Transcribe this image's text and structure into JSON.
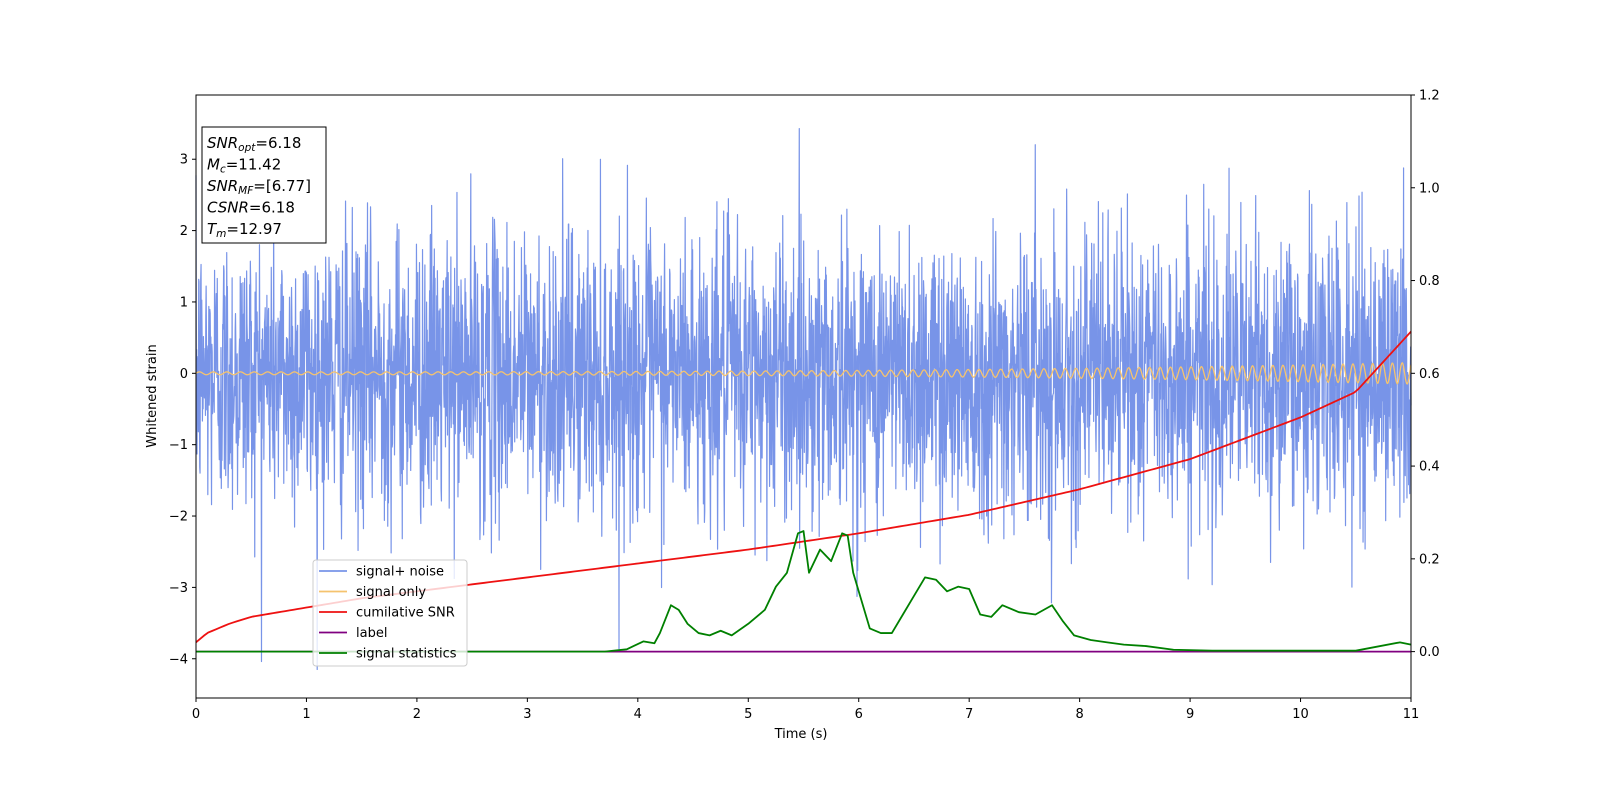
{
  "chart_data": {
    "type": "line",
    "xlabel": "Time (s)",
    "ylabel": "Whitened strain",
    "x_range": [
      0,
      11
    ],
    "ylim_left": [
      -4.55,
      3.9
    ],
    "ylim_right": [
      -0.1,
      1.2
    ],
    "x_ticks": [
      0,
      1,
      2,
      3,
      4,
      5,
      6,
      7,
      8,
      9,
      10,
      11
    ],
    "y_ticks_left": [
      -4,
      -3,
      -2,
      -1,
      0,
      1,
      2,
      3
    ],
    "y_ticks_right": [
      0.0,
      0.2,
      0.4,
      0.6,
      0.8,
      1.0,
      1.2
    ],
    "grid": false,
    "legend_position": "lower-left",
    "annotation": {
      "lines": [
        {
          "sym": "SNR",
          "sub": "opt",
          "value": "=6.18"
        },
        {
          "sym": "M",
          "sub": "c",
          "value": "=11.42"
        },
        {
          "sym": "SNR",
          "sub": "MF",
          "value": "=[6.77]"
        },
        {
          "sym": "CSNR",
          "sub": "",
          "value": "=6.18"
        },
        {
          "sym": "T",
          "sub": "m",
          "value": "=12.97"
        }
      ]
    },
    "series": [
      {
        "name": "signal+ noise",
        "axis": "left",
        "color": "#7894e8",
        "noise_std": 1.0,
        "approx_range": [
          -4.15,
          3.55
        ]
      },
      {
        "name": "signal only",
        "axis": "left",
        "color": "#f5c36e",
        "chirp_amplitude_start": 0.02,
        "chirp_amplitude_end": 0.15
      },
      {
        "name": "cumilative SNR",
        "axis": "right",
        "color": "#ee1111",
        "x": [
          0,
          0.1,
          0.3,
          0.5,
          1,
          1.5,
          2,
          3,
          4,
          5,
          6,
          7,
          8,
          9,
          10,
          10.5,
          11
        ],
        "values": [
          0.02,
          0.04,
          0.06,
          0.075,
          0.095,
          0.115,
          0.13,
          0.16,
          0.19,
          0.22,
          0.255,
          0.295,
          0.35,
          0.415,
          0.505,
          0.56,
          0.69
        ]
      },
      {
        "name": "label",
        "axis": "right",
        "color": "#800080",
        "x": [
          0,
          11
        ],
        "values": [
          0.0,
          0.0
        ]
      },
      {
        "name": "signal statistics",
        "axis": "right",
        "color": "#008000",
        "x": [
          0,
          3.7,
          3.9,
          4.05,
          4.15,
          4.2,
          4.3,
          4.37,
          4.45,
          4.55,
          4.65,
          4.75,
          4.85,
          5.0,
          5.15,
          5.25,
          5.35,
          5.45,
          5.5,
          5.55,
          5.65,
          5.75,
          5.85,
          5.9,
          5.95,
          6.1,
          6.2,
          6.3,
          6.4,
          6.5,
          6.6,
          6.7,
          6.8,
          6.9,
          7.0,
          7.1,
          7.2,
          7.3,
          7.45,
          7.6,
          7.75,
          7.85,
          7.95,
          8.1,
          8.25,
          8.4,
          8.6,
          8.85,
          9.2,
          10.5,
          10.9,
          11
        ],
        "values": [
          0.0,
          0.0,
          0.005,
          0.022,
          0.018,
          0.04,
          0.1,
          0.09,
          0.06,
          0.04,
          0.035,
          0.045,
          0.035,
          0.06,
          0.09,
          0.14,
          0.17,
          0.255,
          0.26,
          0.17,
          0.22,
          0.195,
          0.255,
          0.25,
          0.17,
          0.05,
          0.04,
          0.04,
          0.08,
          0.12,
          0.16,
          0.155,
          0.13,
          0.14,
          0.135,
          0.08,
          0.075,
          0.1,
          0.085,
          0.08,
          0.1,
          0.065,
          0.035,
          0.025,
          0.02,
          0.015,
          0.012,
          0.004,
          0.002,
          0.002,
          0.02,
          0.015
        ]
      }
    ]
  }
}
